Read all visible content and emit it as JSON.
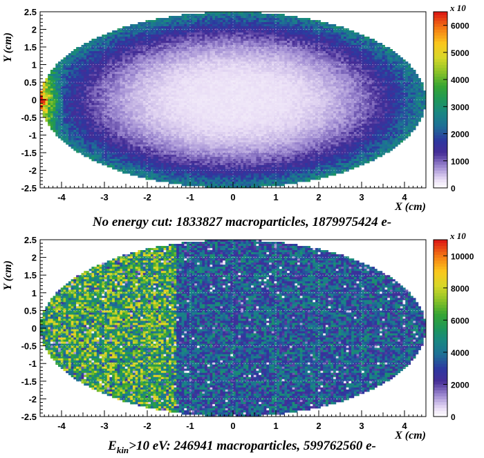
{
  "chart_data": [
    {
      "type": "heatmap",
      "title": "No energy cut: 1833827 macroparticles, 1879975424 e-",
      "xlabel": "X (cm)",
      "ylabel": "Y (cm)",
      "xlim": [
        -4.5,
        4.5
      ],
      "ylim": [
        -2.5,
        2.5
      ],
      "x_ticks": [
        "-4",
        "-3",
        "-2",
        "-1",
        "0",
        "1",
        "2",
        "3",
        "4"
      ],
      "y_ticks": [
        "-2.5",
        "-2",
        "-1.5",
        "-1",
        "-0.5",
        "0",
        "0.5",
        "1",
        "1.5",
        "2",
        "2.5"
      ],
      "grid": true,
      "colorbar": {
        "min": 0,
        "max": 6500,
        "multiplier": "x 10",
        "multiplier_exponent": "2",
        "ticks": [
          "0",
          "1000",
          "2000",
          "3000",
          "4000",
          "5000",
          "6000"
        ]
      },
      "description": "Elliptical beam-pipe distribution: low density (~0-1000) near centre, rising to ~2000-3000 toward the wall, peaking (~6000) at the left edge near x=-4.5",
      "center_level": 250,
      "ring_level": 2700,
      "left_edge_peak": 6400
    },
    {
      "type": "heatmap",
      "caption_prefix": "E",
      "caption_subscript": "kin",
      "caption_rest": ">10 eV: 246941 macroparticles, 599762560  e-",
      "xlabel": "X (cm)",
      "ylabel": "Y (cm)",
      "xlim": [
        -4.5,
        4.5
      ],
      "ylim": [
        -2.5,
        2.5
      ],
      "x_ticks": [
        "-4",
        "-3",
        "-2",
        "-1",
        "0",
        "1",
        "2",
        "3",
        "4"
      ],
      "y_ticks": [
        "-2.5",
        "-2",
        "-1.5",
        "-1",
        "-0.5",
        "0",
        "0.5",
        "1",
        "1.5",
        "2",
        "2.5"
      ],
      "grid": true,
      "colorbar": {
        "min": 0,
        "max": 11000,
        "multiplier": "x 10",
        "multiplier_exponent": "",
        "ticks": [
          "0",
          "2000",
          "4000",
          "6000",
          "8000",
          "10000"
        ]
      },
      "description": "Noisy uniform filling: left part (x<-1.3) higher (~5000-7000, green/yellow), right part lower (~3000-4500, teal/blue)",
      "left_level": 6000,
      "right_level": 3600,
      "boundary_x": -1.3
    }
  ]
}
